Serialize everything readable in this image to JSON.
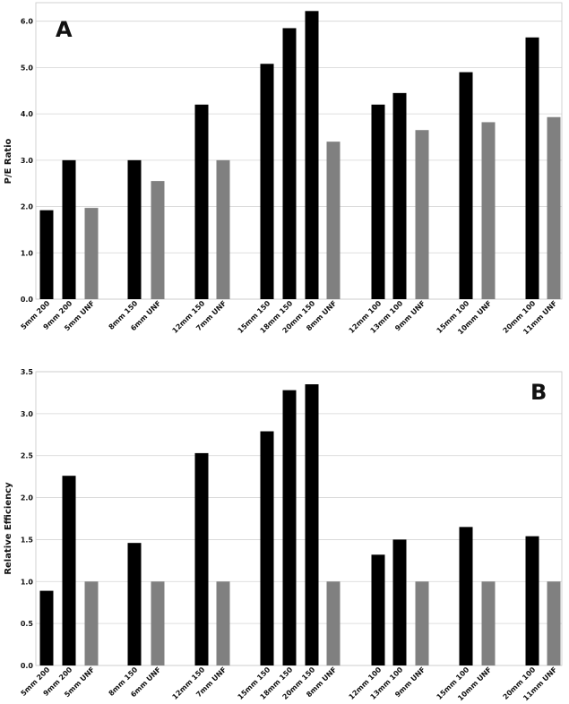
{
  "colors": {
    "black_bar": "#000000",
    "gray_bar": "#808080",
    "grid": "#d4d4d4"
  },
  "chart_data": [
    {
      "type": "bar",
      "panel_label": "A",
      "ylabel": "P/E Ratio",
      "ylim": [
        0,
        6.4
      ],
      "yticks": [
        "0.0",
        "1.0",
        "2.0",
        "3.0",
        "4.0",
        "5.0",
        "6.0"
      ],
      "grid": "horizontal",
      "categories": [
        "5mm 200",
        "9mm 200",
        "5mm UNF",
        "8mm 150",
        "6mm UNF",
        "12mm 150",
        "7mm UNF",
        "15mm 150",
        "18mm 150",
        "20mm 150",
        "8mm UNF",
        "12mm 100",
        "13mm 100",
        "9mm UNF",
        "15mm 100",
        "10mm UNF",
        "20mm 100",
        "11mm UNF"
      ],
      "values": [
        1.92,
        3.0,
        1.97,
        3.0,
        2.55,
        4.2,
        3.0,
        5.08,
        5.85,
        6.22,
        3.4,
        4.2,
        4.45,
        3.65,
        4.9,
        3.82,
        5.65,
        3.93
      ],
      "bar_color": [
        "black",
        "black",
        "gray",
        "black",
        "gray",
        "black",
        "gray",
        "black",
        "black",
        "black",
        "gray",
        "black",
        "black",
        "gray",
        "black",
        "gray",
        "black",
        "gray"
      ]
    },
    {
      "type": "bar",
      "panel_label": "B",
      "ylabel": "Relative Efficiency",
      "ylim": [
        0,
        3.5
      ],
      "yticks": [
        "0.0",
        "0.5",
        "1.0",
        "1.5",
        "2.0",
        "2.5",
        "3.0",
        "3.5"
      ],
      "grid": "horizontal",
      "categories": [
        "5mm 200",
        "9mm 200",
        "5mm UNF",
        "8mm 150",
        "6mm UNF",
        "12mm 150",
        "7mm UNF",
        "15mm 150",
        "18mm 150",
        "20mm 150",
        "8mm UNF",
        "12mm 100",
        "13mm 100",
        "9mm UNF",
        "15mm 100",
        "10mm UNF",
        "20mm 100",
        "11mm UNF"
      ],
      "values": [
        0.89,
        2.26,
        1.0,
        1.46,
        1.0,
        2.53,
        1.0,
        2.79,
        3.28,
        3.35,
        1.0,
        1.32,
        1.5,
        1.0,
        1.65,
        1.0,
        1.54,
        1.0
      ],
      "bar_color": [
        "black",
        "black",
        "gray",
        "black",
        "gray",
        "black",
        "gray",
        "black",
        "black",
        "black",
        "gray",
        "black",
        "black",
        "gray",
        "black",
        "gray",
        "black",
        "gray"
      ]
    }
  ]
}
